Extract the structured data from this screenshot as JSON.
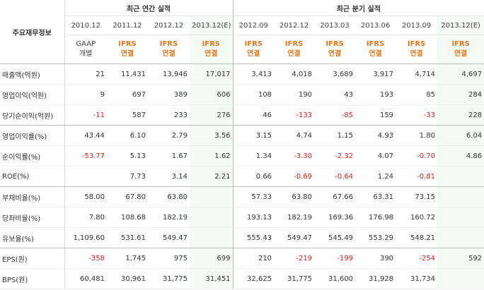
{
  "header": {
    "corner_label": "주요재무정보",
    "annual_title": "최근 연간 실적",
    "quarterly_title": "최근 분기 실적"
  },
  "columns": [
    {
      "period": "2010.12",
      "basis_line1": "GAAP",
      "basis_line2": "개별",
      "type": "gaap"
    },
    {
      "period": "2011.12",
      "basis_line1": "IFRS",
      "basis_line2": "연결",
      "type": "ifrs"
    },
    {
      "period": "2012.12",
      "basis_line1": "IFRS",
      "basis_line2": "연결",
      "type": "ifrs"
    },
    {
      "period": "2013.12(E)",
      "basis_line1": "IFRS",
      "basis_line2": "연결",
      "type": "ifrs",
      "estimate": true
    },
    {
      "period": "2012.09",
      "basis_line1": "IFRS",
      "basis_line2": "연결",
      "type": "ifrs"
    },
    {
      "period": "2012.12",
      "basis_line1": "IFRS",
      "basis_line2": "연결",
      "type": "ifrs"
    },
    {
      "period": "2013.03",
      "basis_line1": "IFRS",
      "basis_line2": "연결",
      "type": "ifrs"
    },
    {
      "period": "2013.06",
      "basis_line1": "IFRS",
      "basis_line2": "연결",
      "type": "ifrs"
    },
    {
      "period": "2013.09",
      "basis_line1": "IFRS",
      "basis_line2": "연결",
      "type": "ifrs"
    },
    {
      "period": "2013.12(E)",
      "basis_line1": "IFRS",
      "basis_line2": "연결",
      "type": "ifrs",
      "estimate": true
    }
  ],
  "rows": [
    {
      "label": "매출액(억원)",
      "values": [
        "21",
        "11,431",
        "13,946",
        "17,017",
        "3,413",
        "4,018",
        "3,689",
        "3,917",
        "4,714",
        "4,697"
      ]
    },
    {
      "label": "영업이익(억원)",
      "values": [
        "9",
        "697",
        "389",
        "606",
        "108",
        "190",
        "43",
        "193",
        "85",
        "284"
      ]
    },
    {
      "label": "당기순이익(억원)",
      "values": [
        "-11",
        "587",
        "233",
        "276",
        "46",
        "-133",
        "-85",
        "159",
        "-33",
        "228"
      ],
      "group_end": true
    },
    {
      "label": "영업이익률(%)",
      "values": [
        "43.44",
        "6.10",
        "2.79",
        "3.56",
        "3.15",
        "4.74",
        "1.15",
        "4.93",
        "1.80",
        "6.04"
      ]
    },
    {
      "label": "순이익률(%)",
      "values": [
        "-53.77",
        "5.13",
        "1.67",
        "1.62",
        "1.34",
        "-3.30",
        "-2.32",
        "4.07",
        "-0.70",
        "4.86"
      ]
    },
    {
      "label": "ROE(%)",
      "values": [
        "",
        "7.73",
        "3.14",
        "2.21",
        "0.66",
        "-0.69",
        "-0.64",
        "1.24",
        "-0.81",
        ""
      ],
      "group_end": true
    },
    {
      "label": "부채비율(%)",
      "values": [
        "58.00",
        "67.80",
        "63.80",
        "",
        "57.33",
        "63.80",
        "67.66",
        "63.31",
        "73.15",
        ""
      ]
    },
    {
      "label": "당좌비율(%)",
      "values": [
        "7.80",
        "108.68",
        "182.19",
        "",
        "193.13",
        "182.19",
        "169.36",
        "176.98",
        "160.72",
        ""
      ]
    },
    {
      "label": "유보율(%)",
      "values": [
        "1,109.60",
        "531.61",
        "549.47",
        "",
        "555.43",
        "549.47",
        "545.49",
        "553.29",
        "548.21",
        ""
      ],
      "group_end": true
    },
    {
      "label": "EPS(원)",
      "values": [
        "-358",
        "1,745",
        "975",
        "699",
        "210",
        "-219",
        "-199",
        "390",
        "-254",
        "592"
      ]
    },
    {
      "label": "BPS(원)",
      "values": [
        "60,481",
        "30,961",
        "31,775",
        "31,451",
        "32,625",
        "31,775",
        "31,600",
        "31,928",
        "31,734",
        ""
      ]
    }
  ],
  "colors": {
    "negative": "#e22020",
    "ifrs_basis": "#e6761c",
    "estimate_bg": "#f3f9f3"
  }
}
